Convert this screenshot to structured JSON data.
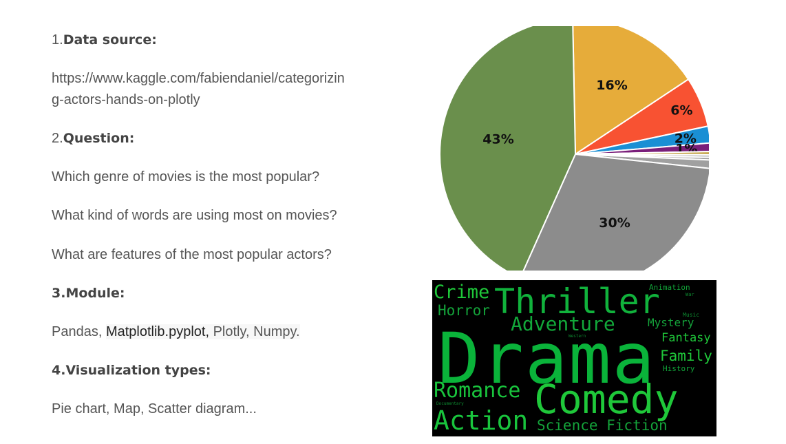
{
  "sections": {
    "data_source": {
      "number": "1.",
      "title": "Data source:",
      "url_line1": "https://www.kaggle.com/fabiendaniel/categorizin",
      "url_line2": "g-actors-hands-on-plotly"
    },
    "question": {
      "number": "2.",
      "title": "Question:",
      "items": [
        "Which genre of movies is the most popular?",
        "What kind of words are using most on movies?",
        "What are features of the most popular actors?"
      ]
    },
    "module": {
      "title": "3.Module:",
      "prefix": "Pandas, ",
      "highlight": "Matplotlib.pyplot,",
      "suffix": " Plotly, Numpy."
    },
    "visualization": {
      "title": "4.Visualization types:",
      "text": "Pie chart, Map, Scatter diagram..."
    }
  },
  "chart_data": {
    "type": "pie",
    "slices": [
      {
        "label": "16%",
        "value": 16,
        "color": "#e6ac3a"
      },
      {
        "label": "6%",
        "value": 6,
        "color": "#f85232"
      },
      {
        "label": "2%",
        "value": 2,
        "color": "#1a8fd4"
      },
      {
        "label": "1%",
        "value": 1,
        "color": "#7a1f7a"
      },
      {
        "label": "",
        "value": 0.4,
        "color": "#c8a850"
      },
      {
        "label": "",
        "value": 0.3,
        "color": "#b8b8b8"
      },
      {
        "label": "",
        "value": 0.3,
        "color": "#999999"
      },
      {
        "label": "",
        "value": 1,
        "color": "#a0a0a0"
      },
      {
        "label": "30%",
        "value": 30,
        "color": "#8c8c8c"
      },
      {
        "label": "43%",
        "value": 43,
        "color": "#6a8f4c"
      }
    ]
  },
  "wordcloud": {
    "words": [
      {
        "text": "Drama",
        "color": "#0ab33a"
      },
      {
        "text": "Comedy",
        "color": "#1fc83a"
      },
      {
        "text": "Thriller",
        "color": "#11b23c"
      },
      {
        "text": "Action",
        "color": "#19c43d"
      },
      {
        "text": "Adventure",
        "color": "#12a83a"
      },
      {
        "text": "Romance",
        "color": "#19c43d"
      },
      {
        "text": "Crime",
        "color": "#1fc83a"
      },
      {
        "text": "Horror",
        "color": "#14a33a"
      },
      {
        "text": "Science Fiction",
        "color": "#14a33a"
      },
      {
        "text": "Mystery",
        "color": "#14a33a"
      },
      {
        "text": "Fantasy",
        "color": "#1fc83a"
      },
      {
        "text": "Family",
        "color": "#1fc83a"
      },
      {
        "text": "Animation",
        "color": "#12a83a"
      },
      {
        "text": "History",
        "color": "#12a83a"
      },
      {
        "text": "War",
        "color": "#0d8a30"
      },
      {
        "text": "Music",
        "color": "#0d8a30"
      },
      {
        "text": "Documentary",
        "color": "#0d8a30"
      },
      {
        "text": "Western",
        "color": "#0d8a30"
      }
    ]
  }
}
